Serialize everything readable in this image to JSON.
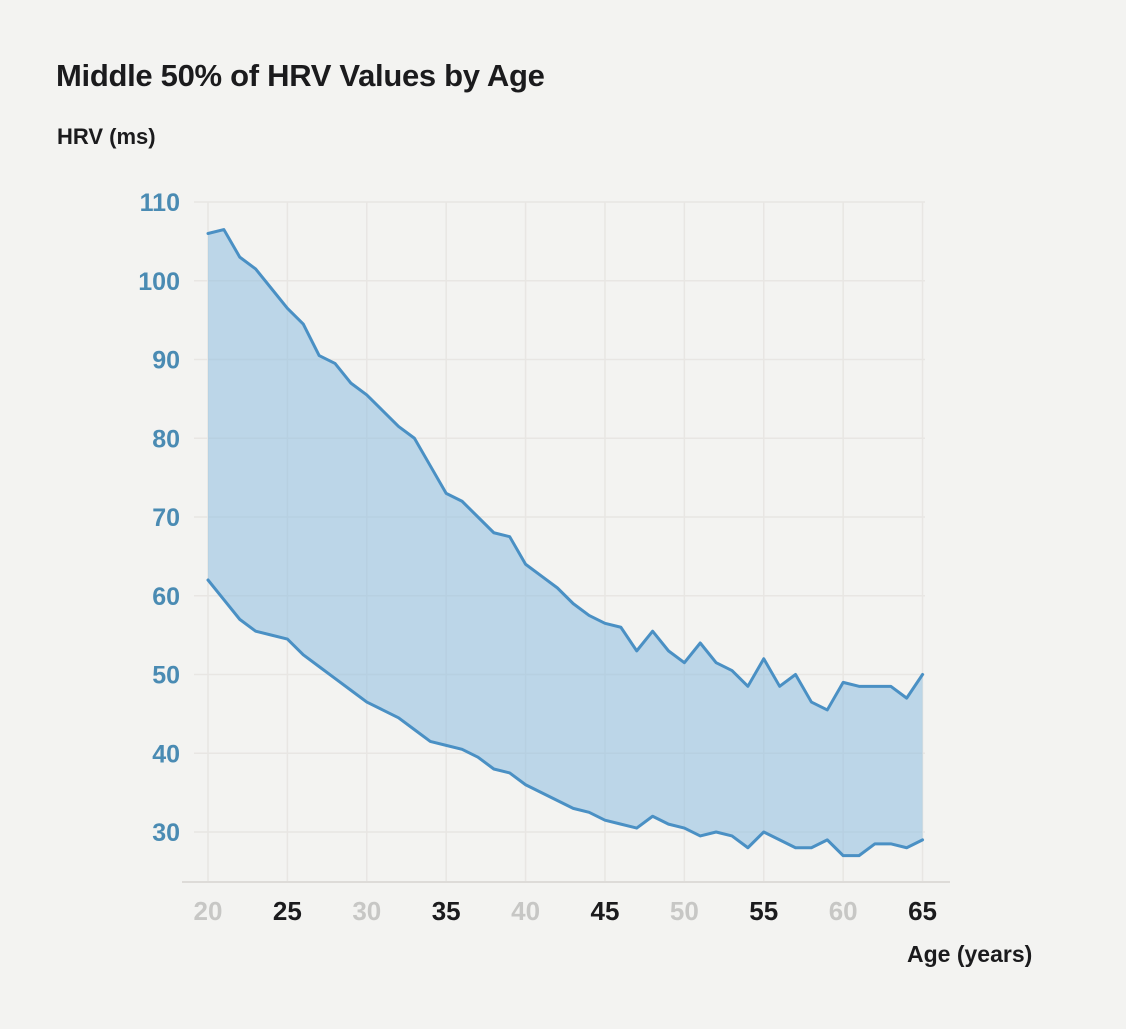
{
  "page": {
    "background": "#f3f3f1"
  },
  "chart_data": {
    "type": "area",
    "subtype": "band",
    "title": "Middle 50% of HRV Values by Age",
    "ylabel": "HRV (ms)",
    "xlabel": "Age (years)",
    "x": [
      20,
      21,
      22,
      23,
      24,
      25,
      26,
      27,
      28,
      29,
      30,
      31,
      32,
      33,
      34,
      35,
      36,
      37,
      38,
      39,
      40,
      41,
      42,
      43,
      44,
      45,
      46,
      47,
      48,
      49,
      50,
      51,
      52,
      53,
      54,
      55,
      56,
      57,
      58,
      59,
      60,
      61,
      62,
      63,
      64,
      65
    ],
    "series": [
      {
        "name": "upper",
        "values": [
          106,
          106.5,
          103,
          101.5,
          99,
          96.5,
          94.5,
          90.5,
          89.5,
          87,
          85.5,
          83.5,
          81.5,
          80,
          76.5,
          73,
          72,
          70,
          68,
          67.5,
          64,
          62.5,
          61,
          59,
          57.5,
          56.5,
          56,
          53,
          55.5,
          53,
          51.5,
          54,
          51.5,
          50.5,
          48.5,
          52,
          48.5,
          50,
          46.5,
          45.5,
          49,
          48.5,
          48.5,
          48.5,
          47,
          50
        ]
      },
      {
        "name": "lower",
        "values": [
          62,
          59.5,
          57,
          55.5,
          55,
          54.5,
          52.5,
          51,
          49.5,
          48,
          46.5,
          45.5,
          44.5,
          43,
          41.5,
          41,
          40.5,
          39.5,
          38,
          37.5,
          36,
          35,
          34,
          33,
          32.5,
          31.5,
          31,
          30.5,
          32,
          31,
          30.5,
          29.5,
          30,
          29.5,
          28,
          30,
          29,
          28,
          28,
          29,
          27,
          27,
          28.5,
          28.5,
          28,
          29
        ]
      }
    ],
    "yticks": [
      30,
      40,
      50,
      60,
      70,
      80,
      90,
      100,
      110
    ],
    "xticks": [
      20,
      25,
      30,
      35,
      40,
      45,
      50,
      55,
      60,
      65
    ],
    "ylim": [
      30,
      110
    ],
    "xlim": [
      20,
      65
    ],
    "grid": true,
    "legend": false,
    "colors": {
      "line": "#4a90c4",
      "band_fill": "#85b9e0",
      "ytick": "#4a8bb3",
      "xtick_major": "#1b1b1d",
      "xtick_minor": "#c7c7c5",
      "grid": "#e8e6e3",
      "axis": "#dddbd8",
      "title_text": "#1b1b1d"
    }
  }
}
